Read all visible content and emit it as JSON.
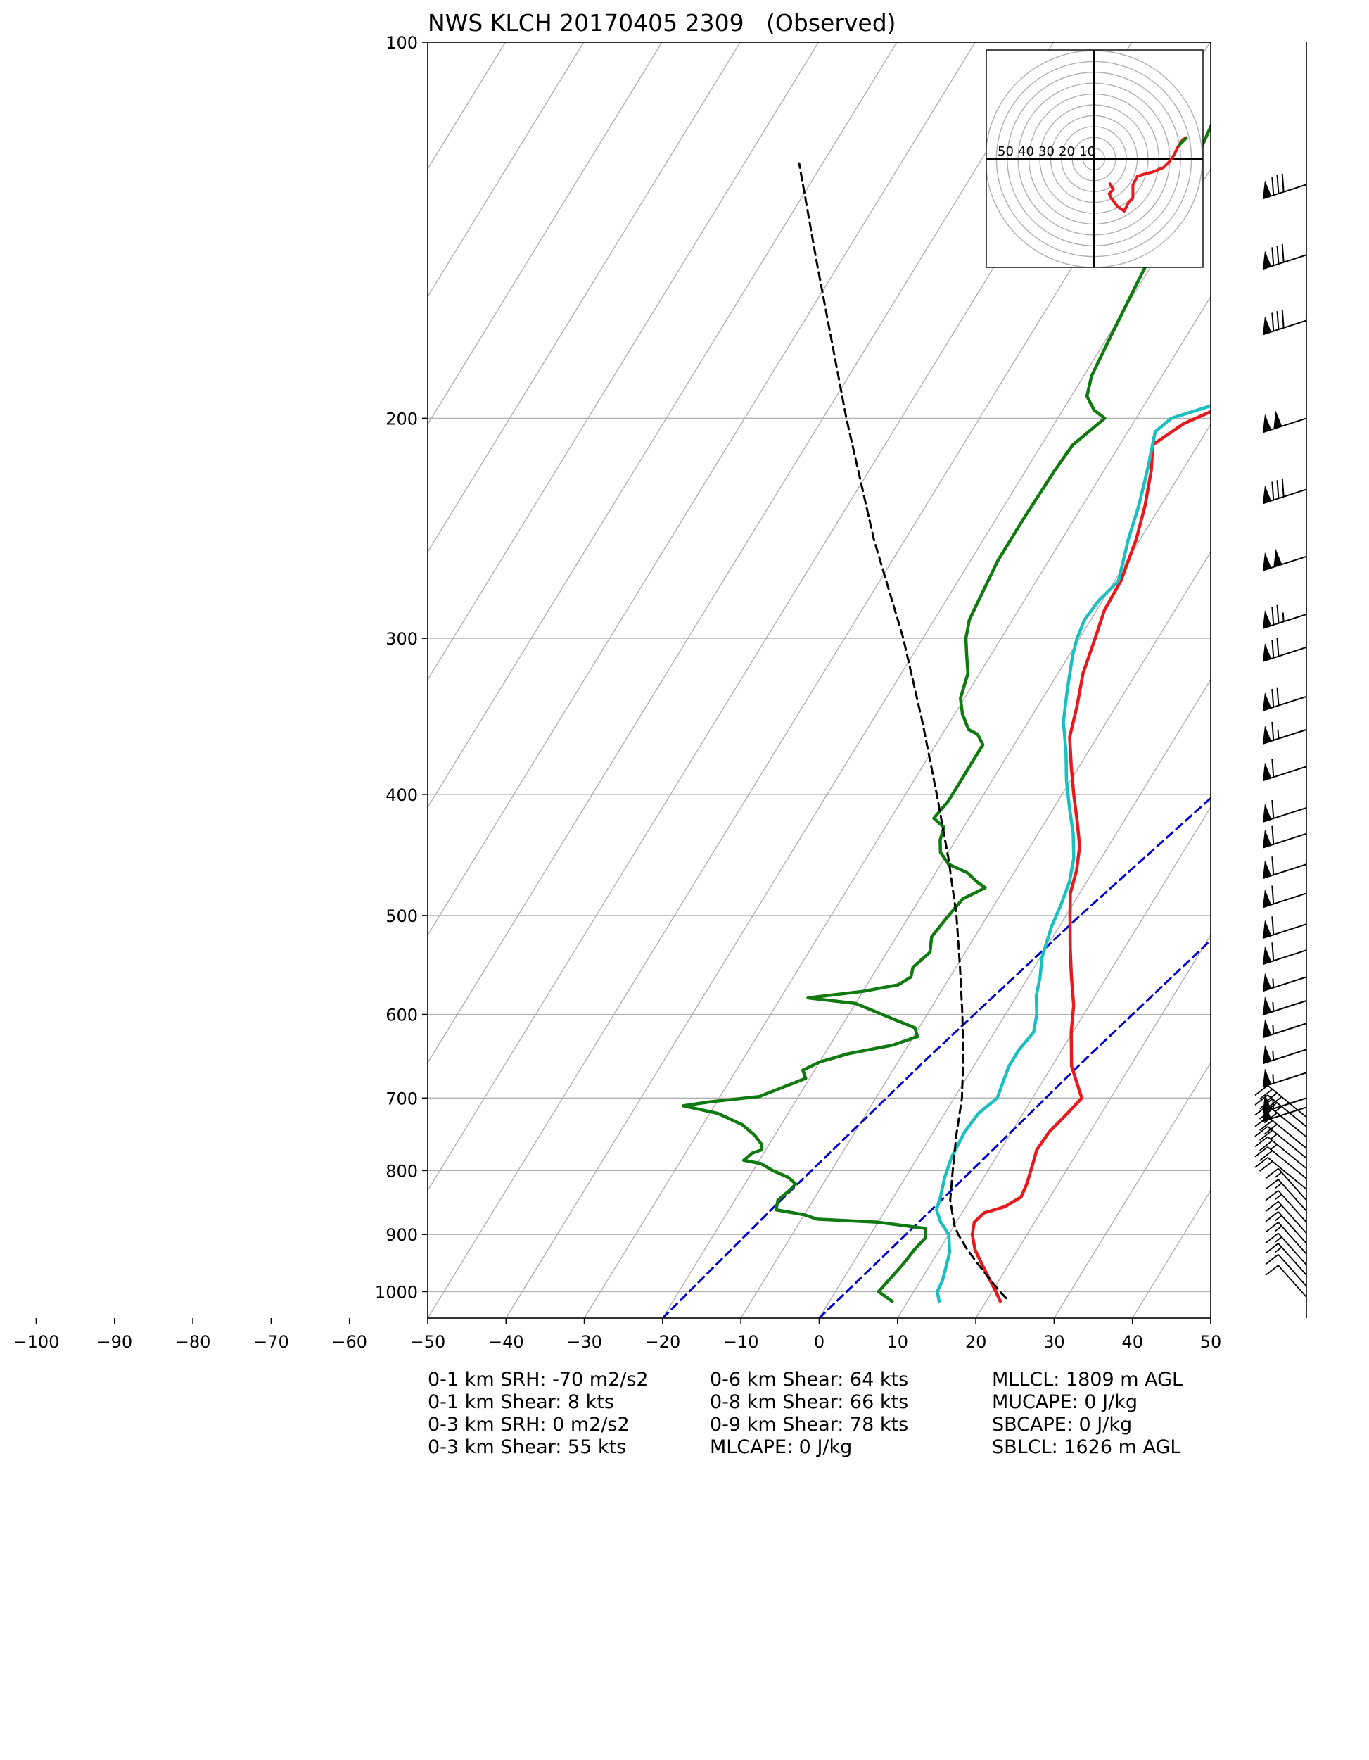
{
  "chart_data": {
    "type": "line",
    "chart_kind": "skew-t log-p sounding",
    "title": "NWS KLCH 20170405 2309   (Observed)",
    "xlabel": "",
    "ylabel": "",
    "y_scale": "log",
    "y_inverted": true,
    "xlim": [
      -50,
      50
    ],
    "ylim": [
      1050,
      100
    ],
    "x_ticks": [
      -100,
      -90,
      -80,
      -70,
      -60,
      -50,
      -40,
      -30,
      -20,
      -10,
      0,
      10,
      20,
      30,
      40,
      50
    ],
    "x_tick_labels": [
      "−100",
      "−90",
      "−80",
      "−70",
      "−60",
      "−50",
      "−40",
      "−30",
      "−20",
      "−10",
      "0",
      "10",
      "20",
      "30",
      "40",
      "50"
    ],
    "y_ticks": [
      100,
      200,
      300,
      400,
      500,
      600,
      700,
      800,
      900,
      1000
    ],
    "grid": true,
    "isotherm_spacing": 10,
    "series": [
      {
        "role": "temperature",
        "color": "#e8191c",
        "points": [
          [
            1018,
            21.8
          ],
          [
            1000,
            20.5
          ],
          [
            975,
            18.5
          ],
          [
            950,
            16.5
          ],
          [
            925,
            14.5
          ],
          [
            900,
            13.0
          ],
          [
            880,
            12.3
          ],
          [
            865,
            12.8
          ],
          [
            855,
            15.0
          ],
          [
            840,
            16.3
          ],
          [
            820,
            16.0
          ],
          [
            790,
            15.2
          ],
          [
            770,
            14.6
          ],
          [
            745,
            14.8
          ],
          [
            725,
            15.5
          ],
          [
            700,
            16.3
          ],
          [
            660,
            12.5
          ],
          [
            620,
            9.8
          ],
          [
            590,
            8.0
          ],
          [
            560,
            5.5
          ],
          [
            530,
            3.0
          ],
          [
            500,
            0.5
          ],
          [
            480,
            -1.2
          ],
          [
            460,
            -2.2
          ],
          [
            440,
            -3.7
          ],
          [
            420,
            -6.0
          ],
          [
            400,
            -8.5
          ],
          [
            380,
            -11.0
          ],
          [
            360,
            -13.5
          ],
          [
            340,
            -15.0
          ],
          [
            320,
            -16.8
          ],
          [
            300,
            -18.0
          ],
          [
            285,
            -19.0
          ],
          [
            270,
            -19.2
          ],
          [
            250,
            -20.5
          ],
          [
            235,
            -22.0
          ],
          [
            220,
            -24.0
          ],
          [
            210,
            -25.8
          ],
          [
            202,
            -23.5
          ],
          [
            195,
            -19.5
          ],
          [
            185,
            -17.5
          ],
          [
            175,
            -17.5
          ],
          [
            165,
            -19.5
          ],
          [
            155,
            -19.0
          ],
          [
            140,
            -19.5
          ],
          [
            130,
            -20.8
          ],
          [
            120,
            -21.5
          ],
          [
            110,
            -22.0
          ],
          [
            105,
            -23.0
          ],
          [
            100,
            -22.5
          ]
        ]
      },
      {
        "role": "virtual temperature",
        "color": "#1cbfbf",
        "points": [
          [
            1018,
            14.0
          ],
          [
            1000,
            13.0
          ],
          [
            980,
            12.8
          ],
          [
            960,
            12.3
          ],
          [
            930,
            11.5
          ],
          [
            900,
            10.0
          ],
          [
            880,
            8.0
          ],
          [
            860,
            6.5
          ],
          [
            840,
            6.0
          ],
          [
            810,
            5.0
          ],
          [
            780,
            4.3
          ],
          [
            745,
            4.0
          ],
          [
            720,
            4.3
          ],
          [
            700,
            5.5
          ],
          [
            680,
            5.0
          ],
          [
            660,
            4.5
          ],
          [
            640,
            4.5
          ],
          [
            620,
            5.0
          ],
          [
            600,
            4.0
          ],
          [
            580,
            2.5
          ],
          [
            560,
            1.5
          ],
          [
            540,
            0.2
          ],
          [
            510,
            -1.0
          ],
          [
            490,
            -1.5
          ],
          [
            470,
            -2.2
          ],
          [
            450,
            -3.5
          ],
          [
            430,
            -5.5
          ],
          [
            410,
            -8.0
          ],
          [
            390,
            -10.5
          ],
          [
            370,
            -12.8
          ],
          [
            350,
            -15.5
          ],
          [
            330,
            -17.5
          ],
          [
            310,
            -19.5
          ],
          [
            300,
            -20.3
          ],
          [
            290,
            -20.8
          ],
          [
            280,
            -20.5
          ],
          [
            270,
            -19.5
          ],
          [
            250,
            -21.5
          ],
          [
            235,
            -22.8
          ],
          [
            220,
            -24.5
          ],
          [
            205,
            -26.5
          ],
          [
            200,
            -25.5
          ],
          [
            195,
            -21.0
          ],
          [
            185,
            -18.5
          ],
          [
            175,
            -18.0
          ],
          [
            165,
            -20.0
          ],
          [
            155,
            -20.0
          ],
          [
            140,
            -19.5
          ],
          [
            130,
            -20.5
          ],
          [
            120,
            -21.5
          ],
          [
            110,
            -22.0
          ],
          [
            100,
            -23.0
          ]
        ]
      },
      {
        "role": "dewpoint",
        "color": "#107a10",
        "points": [
          [
            1018,
            8.0
          ],
          [
            1000,
            5.5
          ],
          [
            975,
            6.0
          ],
          [
            950,
            6.5
          ],
          [
            925,
            6.8
          ],
          [
            905,
            7.3
          ],
          [
            890,
            6.5
          ],
          [
            880,
            0.0
          ],
          [
            875,
            -8.0
          ],
          [
            868,
            -10.0
          ],
          [
            860,
            -14.0
          ],
          [
            845,
            -14.5
          ],
          [
            830,
            -13.8
          ],
          [
            820,
            -13.5
          ],
          [
            810,
            -15.0
          ],
          [
            800,
            -17.5
          ],
          [
            790,
            -19.5
          ],
          [
            785,
            -22.0
          ],
          [
            775,
            -21.5
          ],
          [
            770,
            -20.5
          ],
          [
            762,
            -21.0
          ],
          [
            750,
            -22.5
          ],
          [
            735,
            -25.0
          ],
          [
            720,
            -29.0
          ],
          [
            710,
            -34.0
          ],
          [
            705,
            -31.0
          ],
          [
            698,
            -25.0
          ],
          [
            685,
            -22.5
          ],
          [
            675,
            -20.5
          ],
          [
            665,
            -21.5
          ],
          [
            655,
            -20.0
          ],
          [
            645,
            -17.0
          ],
          [
            635,
            -12.0
          ],
          [
            625,
            -9.5
          ],
          [
            615,
            -10.5
          ],
          [
            605,
            -14.0
          ],
          [
            595,
            -17.5
          ],
          [
            588,
            -20.0
          ],
          [
            582,
            -26.5
          ],
          [
            575,
            -20.0
          ],
          [
            568,
            -16.0
          ],
          [
            560,
            -15.0
          ],
          [
            550,
            -15.5
          ],
          [
            535,
            -14.5
          ],
          [
            520,
            -15.5
          ],
          [
            500,
            -15.0
          ],
          [
            485,
            -14.5
          ],
          [
            475,
            -12.5
          ],
          [
            470,
            -14.0
          ],
          [
            462,
            -16.0
          ],
          [
            455,
            -19.0
          ],
          [
            445,
            -21.0
          ],
          [
            435,
            -22.0
          ],
          [
            425,
            -22.5
          ],
          [
            418,
            -24.5
          ],
          [
            405,
            -24.0
          ],
          [
            390,
            -24.0
          ],
          [
            375,
            -24.0
          ],
          [
            365,
            -24.0
          ],
          [
            358,
            -25.5
          ],
          [
            355,
            -27.0
          ],
          [
            345,
            -29.0
          ],
          [
            335,
            -30.5
          ],
          [
            320,
            -31.5
          ],
          [
            310,
            -33.0
          ],
          [
            300,
            -34.5
          ],
          [
            290,
            -35.5
          ],
          [
            275,
            -36.0
          ],
          [
            260,
            -36.5
          ],
          [
            240,
            -36.5
          ],
          [
            220,
            -36.3
          ],
          [
            210,
            -36.0
          ],
          [
            205,
            -35.0
          ],
          [
            200,
            -34.0
          ],
          [
            197,
            -36.0
          ],
          [
            192,
            -38.0
          ],
          [
            185,
            -39.0
          ],
          [
            175,
            -39.5
          ],
          [
            165,
            -40.0
          ],
          [
            155,
            -40.5
          ],
          [
            145,
            -41.0
          ],
          [
            135,
            -41.5
          ],
          [
            125,
            -42.5
          ],
          [
            115,
            -43.5
          ],
          [
            108,
            -44.0
          ],
          [
            100,
            -44.5
          ]
        ]
      },
      {
        "role": "parcel profile",
        "color": "#000000",
        "style": "dashed",
        "points": [
          [
            1012,
            22.3
          ],
          [
            1000,
            21.0
          ],
          [
            975,
            18.5
          ],
          [
            950,
            16.0
          ],
          [
            925,
            13.5
          ],
          [
            900,
            11.2
          ],
          [
            885,
            10.0
          ],
          [
            845,
            7.5
          ],
          [
            800,
            5.5
          ],
          [
            750,
            3.2
          ],
          [
            700,
            1.0
          ],
          [
            650,
            -2.0
          ],
          [
            600,
            -5.5
          ],
          [
            550,
            -9.5
          ],
          [
            500,
            -14.0
          ],
          [
            450,
            -19.5
          ],
          [
            400,
            -26.0
          ],
          [
            350,
            -33.5
          ],
          [
            300,
            -42.5
          ],
          [
            250,
            -54.0
          ],
          [
            200,
            -67.0
          ],
          [
            150,
            -83.0
          ],
          [
            125,
            -93.0
          ]
        ]
      },
      {
        "role": "dry adiabat / reference",
        "color": "#0000cc",
        "style": "dashed",
        "points": [
          [
            1050,
            -20
          ],
          [
            850,
            -14.3
          ],
          [
            650,
            -6.5
          ],
          [
            500,
            1.8
          ],
          [
            300,
            19.5
          ],
          [
            200,
            35.5
          ],
          [
            150,
            48.0
          ],
          [
            100,
            66.0
          ]
        ]
      },
      {
        "role": "dry adiabat / reference",
        "color": "#0000cc",
        "style": "dashed",
        "points": [
          [
            1050,
            0
          ],
          [
            850,
            6.2
          ],
          [
            650,
            13.8
          ],
          [
            500,
            21.8
          ],
          [
            300,
            39.5
          ],
          [
            200,
            55.5
          ],
          [
            150,
            68.0
          ],
          [
            100,
            86.0
          ]
        ]
      }
    ],
    "wind_barbs": [
      {
        "p": 130,
        "speed": 80
      },
      {
        "p": 148,
        "speed": 80
      },
      {
        "p": 167,
        "speed": 80
      },
      {
        "p": 200,
        "speed": 100
      },
      {
        "p": 228,
        "speed": 80
      },
      {
        "p": 258,
        "speed": 100
      },
      {
        "p": 287,
        "speed": 75
      },
      {
        "p": 305,
        "speed": 70
      },
      {
        "p": 334,
        "speed": 70
      },
      {
        "p": 355,
        "speed": 65
      },
      {
        "p": 380,
        "speed": 60
      },
      {
        "p": 410,
        "speed": 60
      },
      {
        "p": 430,
        "speed": 60
      },
      {
        "p": 455,
        "speed": 60
      },
      {
        "p": 480,
        "speed": 60
      },
      {
        "p": 508,
        "speed": 60
      },
      {
        "p": 533,
        "speed": 60
      },
      {
        "p": 560,
        "speed": 55
      },
      {
        "p": 585,
        "speed": 55
      },
      {
        "p": 610,
        "speed": 55
      },
      {
        "p": 640,
        "speed": 55
      },
      {
        "p": 668,
        "speed": 55
      },
      {
        "p": 700,
        "speed": 55
      },
      {
        "p": 712,
        "speed": 50
      },
      {
        "p": 725,
        "speed": 40
      },
      {
        "p": 738,
        "speed": 35
      },
      {
        "p": 752,
        "speed": 30
      },
      {
        "p": 768,
        "speed": 30
      },
      {
        "p": 782,
        "speed": 25
      },
      {
        "p": 797,
        "speed": 25
      },
      {
        "p": 812,
        "speed": 20
      },
      {
        "p": 828,
        "speed": 20
      },
      {
        "p": 845,
        "speed": 15
      },
      {
        "p": 862,
        "speed": 15
      },
      {
        "p": 880,
        "speed": 15
      },
      {
        "p": 898,
        "speed": 15
      },
      {
        "p": 915,
        "speed": 15
      },
      {
        "p": 933,
        "speed": 15
      },
      {
        "p": 952,
        "speed": 15
      },
      {
        "p": 970,
        "speed": 15
      },
      {
        "p": 990,
        "speed": 10
      },
      {
        "p": 1010,
        "speed": 10
      }
    ],
    "hodograph": {
      "ring_labels": [
        "50",
        "40",
        "30",
        "20",
        "10"
      ],
      "ring_step_kts": 10,
      "rings": 10,
      "trace_color": "#e8191c",
      "trace_end_color": "#107a10",
      "trace_kts": [
        [
          7,
          -11
        ],
        [
          9,
          -14
        ],
        [
          7,
          -16
        ],
        [
          8,
          -18
        ],
        [
          11,
          -22
        ],
        [
          14,
          -24
        ],
        [
          16,
          -20
        ],
        [
          18,
          -18
        ],
        [
          18,
          -12
        ],
        [
          20,
          -8
        ],
        [
          23,
          -7
        ],
        [
          27,
          -6
        ],
        [
          32,
          -4
        ],
        [
          35,
          -1
        ],
        [
          37,
          2
        ],
        [
          39,
          6
        ],
        [
          41,
          9
        ],
        [
          43,
          10
        ]
      ]
    }
  },
  "title": "NWS KLCH 20170405 2309   (Observed)",
  "indices": {
    "col1": [
      "0-1 km SRH: -70 m2/s2",
      "0-1 km Shear: 8 kts",
      "0-3 km SRH: 0 m2/s2",
      "0-3 km Shear: 55 kts"
    ],
    "col2": [
      "0-6 km Shear: 64 kts",
      "0-8 km Shear: 66 kts",
      "0-9 km Shear: 78 kts",
      "MLCAPE: 0 J/kg"
    ],
    "col3": [
      "MLLCL: 1809 m AGL",
      "MUCAPE: 0 J/kg",
      "SBCAPE: 0 J/kg",
      "SBLCL: 1626 m AGL"
    ]
  }
}
